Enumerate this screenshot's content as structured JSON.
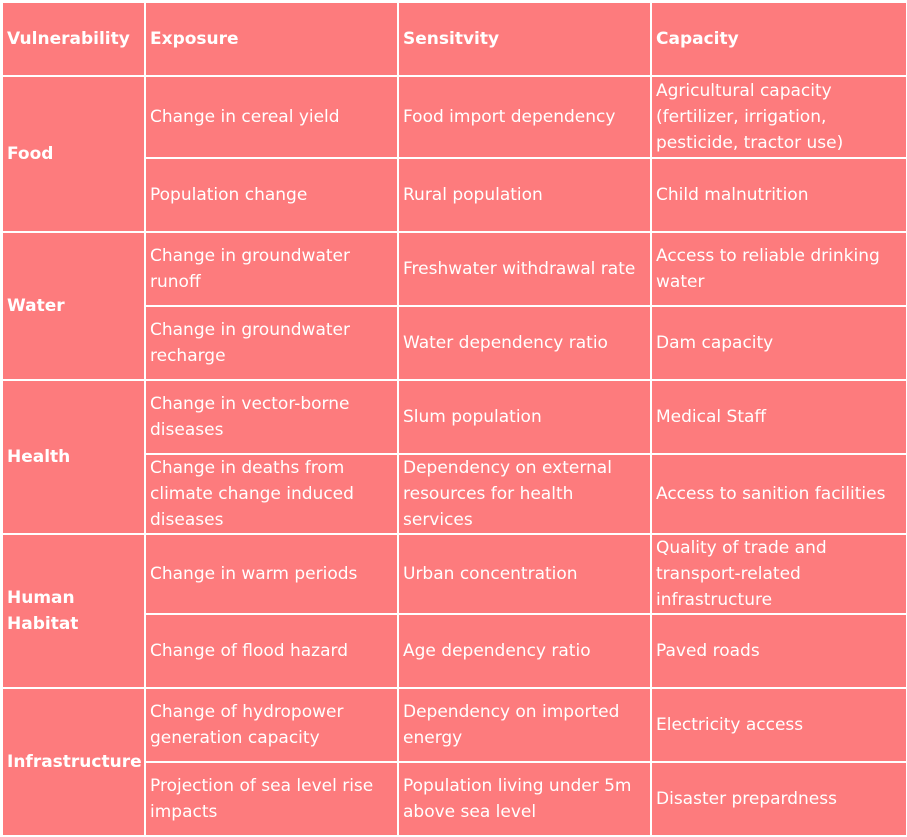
{
  "headers": {
    "vulnerability": "Vulnerability",
    "exposure": "Exposure",
    "sensitivity": "Sensitvity",
    "capacity": "Capacity"
  },
  "categories": [
    {
      "name": "Food",
      "rows": [
        {
          "exposure": "Change in cereal yield",
          "sensitivity": "Food import dependency",
          "capacity": "Agricultural capacity (fertilizer, irrigation, pesticide, tractor use)"
        },
        {
          "exposure": "Population change",
          "sensitivity": "Rural population",
          "capacity": "Child malnutrition"
        }
      ]
    },
    {
      "name": "Water",
      "rows": [
        {
          "exposure": "Change in groundwater runoff",
          "sensitivity": "Freshwater withdrawal rate",
          "capacity": "Access to reliable drinking water"
        },
        {
          "exposure": "Change in groundwater recharge",
          "sensitivity": "Water dependency ratio",
          "capacity": "Dam capacity"
        }
      ]
    },
    {
      "name": "Health",
      "rows": [
        {
          "exposure": "Change in vector-borne diseases",
          "sensitivity": "Slum population",
          "capacity": "Medical Staff"
        },
        {
          "exposure": "Change in deaths from climate change induced diseases",
          "sensitivity": "Dependency on external resources for health services",
          "capacity": "Access to sanition facilities"
        }
      ]
    },
    {
      "name": "Human Habitat",
      "rows": [
        {
          "exposure": "Change in warm periods",
          "sensitivity": "Urban concentration",
          "capacity": "Quality of trade and transport-related infrastructure"
        },
        {
          "exposure": "Change of flood hazard",
          "sensitivity": "Age dependency ratio",
          "capacity": "Paved roads"
        }
      ]
    },
    {
      "name": "Infrastructure",
      "rows": [
        {
          "exposure": "Change of hydropower generation capacity",
          "sensitivity": "Dependency on imported energy",
          "capacity": "Electricity access"
        },
        {
          "exposure": "Projection of sea level rise impacts",
          "sensitivity": "Population living under 5m above sea level",
          "capacity": "Disaster prepardness"
        }
      ]
    }
  ]
}
